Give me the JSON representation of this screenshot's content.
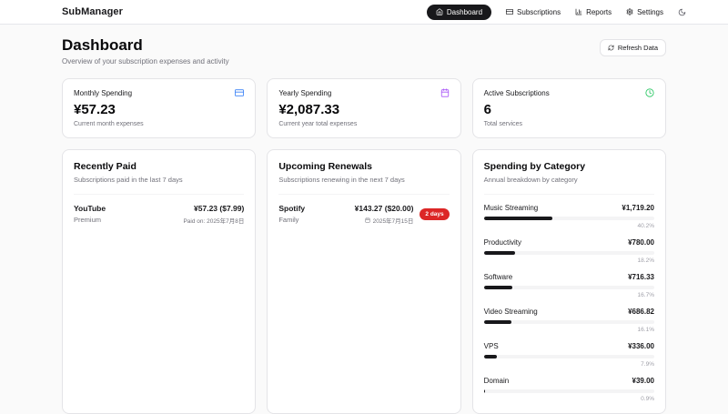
{
  "brand": "SubManager",
  "nav": {
    "items": [
      {
        "label": "Dashboard",
        "icon": "home-icon",
        "active": true
      },
      {
        "label": "Subscriptions",
        "icon": "credit-card-icon",
        "active": false
      },
      {
        "label": "Reports",
        "icon": "bar-chart-icon",
        "active": false
      },
      {
        "label": "Settings",
        "icon": "gear-icon",
        "active": false
      }
    ],
    "theme_toggle_icon": "moon-icon"
  },
  "header": {
    "title": "Dashboard",
    "subtitle": "Overview of your subscription expenses and activity",
    "refresh_label": "Refresh Data",
    "refresh_icon": "refresh-icon"
  },
  "stats": [
    {
      "label": "Monthly Spending",
      "value": "¥57.23",
      "caption": "Current month expenses",
      "icon": "credit-card-icon",
      "icon_color": "#3b82f6"
    },
    {
      "label": "Yearly Spending",
      "value": "¥2,087.33",
      "caption": "Current year total expenses",
      "icon": "calendar-icon",
      "icon_color": "#a855f7"
    },
    {
      "label": "Active Subscriptions",
      "value": "6",
      "caption": "Total services",
      "icon": "clock-icon",
      "icon_color": "#22c55e"
    }
  ],
  "recently_paid": {
    "title": "Recently Paid",
    "subtitle": "Subscriptions paid in the last 7 days",
    "items": [
      {
        "name": "YouTube",
        "plan": "Premium",
        "amount": "¥57.23 ($7.99)",
        "paid_on": "Paid on: 2025年7月8日"
      }
    ]
  },
  "upcoming_renewals": {
    "title": "Upcoming Renewals",
    "subtitle": "Subscriptions renewing in the next 7 days",
    "items": [
      {
        "name": "Spotify",
        "plan": "Family",
        "amount": "¥143.27 ($20.00)",
        "date": "2025年7月15日",
        "badge": "2 days"
      }
    ]
  },
  "spending_by_category": {
    "title": "Spending by Category",
    "subtitle": "Annual breakdown by category",
    "categories": [
      {
        "name": "Music Streaming",
        "amount": "¥1,719.20",
        "percent": 40.2,
        "percent_label": "40.2%"
      },
      {
        "name": "Productivity",
        "amount": "¥780.00",
        "percent": 18.2,
        "percent_label": "18.2%"
      },
      {
        "name": "Software",
        "amount": "¥716.33",
        "percent": 16.7,
        "percent_label": "16.7%"
      },
      {
        "name": "Video Streaming",
        "amount": "¥686.82",
        "percent": 16.1,
        "percent_label": "16.1%"
      },
      {
        "name": "VPS",
        "amount": "¥336.00",
        "percent": 7.9,
        "percent_label": "7.9%"
      },
      {
        "name": "Domain",
        "amount": "¥39.00",
        "percent": 0.9,
        "percent_label": "0.9%"
      }
    ]
  },
  "theme": {
    "accent": "#18181b",
    "card_border": "#e4e4e7",
    "muted_text": "#71717a",
    "badge_red": "#dc2626",
    "icon_blue": "#3b82f6",
    "icon_purple": "#a855f7",
    "icon_green": "#22c55e",
    "bar_fill": "#18181b"
  }
}
